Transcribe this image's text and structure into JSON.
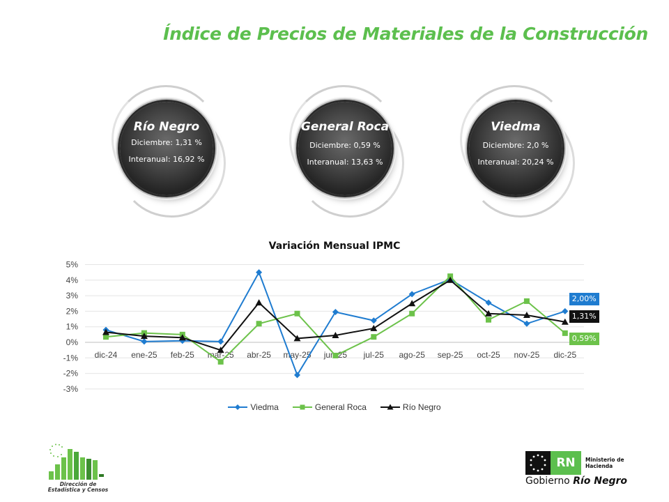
{
  "header": {
    "title": "Índice de Precios de Materiales de la Construcción"
  },
  "badges": [
    {
      "name": "Río Negro",
      "line1": "Diciembre: 1,31 %",
      "line2": "Interanual: 16,92 %"
    },
    {
      "name": "General Roca",
      "line1": "Diciembre: 0,59 %",
      "line2": "Interanual: 13,63 %"
    },
    {
      "name": "Viedma",
      "line1": "Diciembre: 2,0 %",
      "line2": "Interanual: 20,24 %"
    }
  ],
  "chart_data": {
    "type": "line",
    "title": "Variación Mensual IPMC",
    "categories": [
      "dic-24",
      "ene-25",
      "feb-25",
      "mar-25",
      "abr-25",
      "may-25",
      "jun-25",
      "jul-25",
      "ago-25",
      "sep-25",
      "oct-25",
      "nov-25",
      "dic-25"
    ],
    "ylim": [
      -3,
      5
    ],
    "yticks": [
      5,
      4,
      3,
      2,
      1,
      0,
      -1,
      -2,
      -3
    ],
    "ytick_labels": [
      "5%",
      "4%",
      "3%",
      "2%",
      "1%",
      "0%",
      "-1%",
      "-2%",
      "-3%"
    ],
    "grid": true,
    "legend_position": "bottom",
    "series": [
      {
        "name": "Viedma",
        "color": "#1f7cd0",
        "marker": "diamond",
        "values": [
          0.8,
          0.05,
          0.1,
          0.05,
          4.5,
          -2.1,
          1.95,
          1.4,
          3.1,
          4.05,
          2.55,
          1.2,
          2.0
        ],
        "end_label": "2,00%"
      },
      {
        "name": "General Roca",
        "color": "#6cc24a",
        "marker": "square",
        "values": [
          0.35,
          0.6,
          0.5,
          -1.25,
          1.2,
          1.85,
          -0.85,
          0.35,
          1.85,
          4.25,
          1.45,
          2.65,
          0.59
        ],
        "end_label": "0,59%"
      },
      {
        "name": "Río Negro",
        "color": "#111111",
        "marker": "triangle",
        "values": [
          0.65,
          0.4,
          0.3,
          -0.5,
          2.55,
          0.25,
          0.45,
          0.9,
          2.5,
          4.0,
          1.85,
          1.75,
          1.31
        ],
        "end_label": "1,31%"
      }
    ]
  },
  "footer": {
    "left_logo_caption_1": "Dirección de",
    "left_logo_caption_2": "Estadística y Censos",
    "rn_mark": "RN",
    "ministry_1": "Ministerio de",
    "ministry_2": "Hacienda",
    "gov_prefix": "Gobierno",
    "gov_name": "Río Negro"
  }
}
